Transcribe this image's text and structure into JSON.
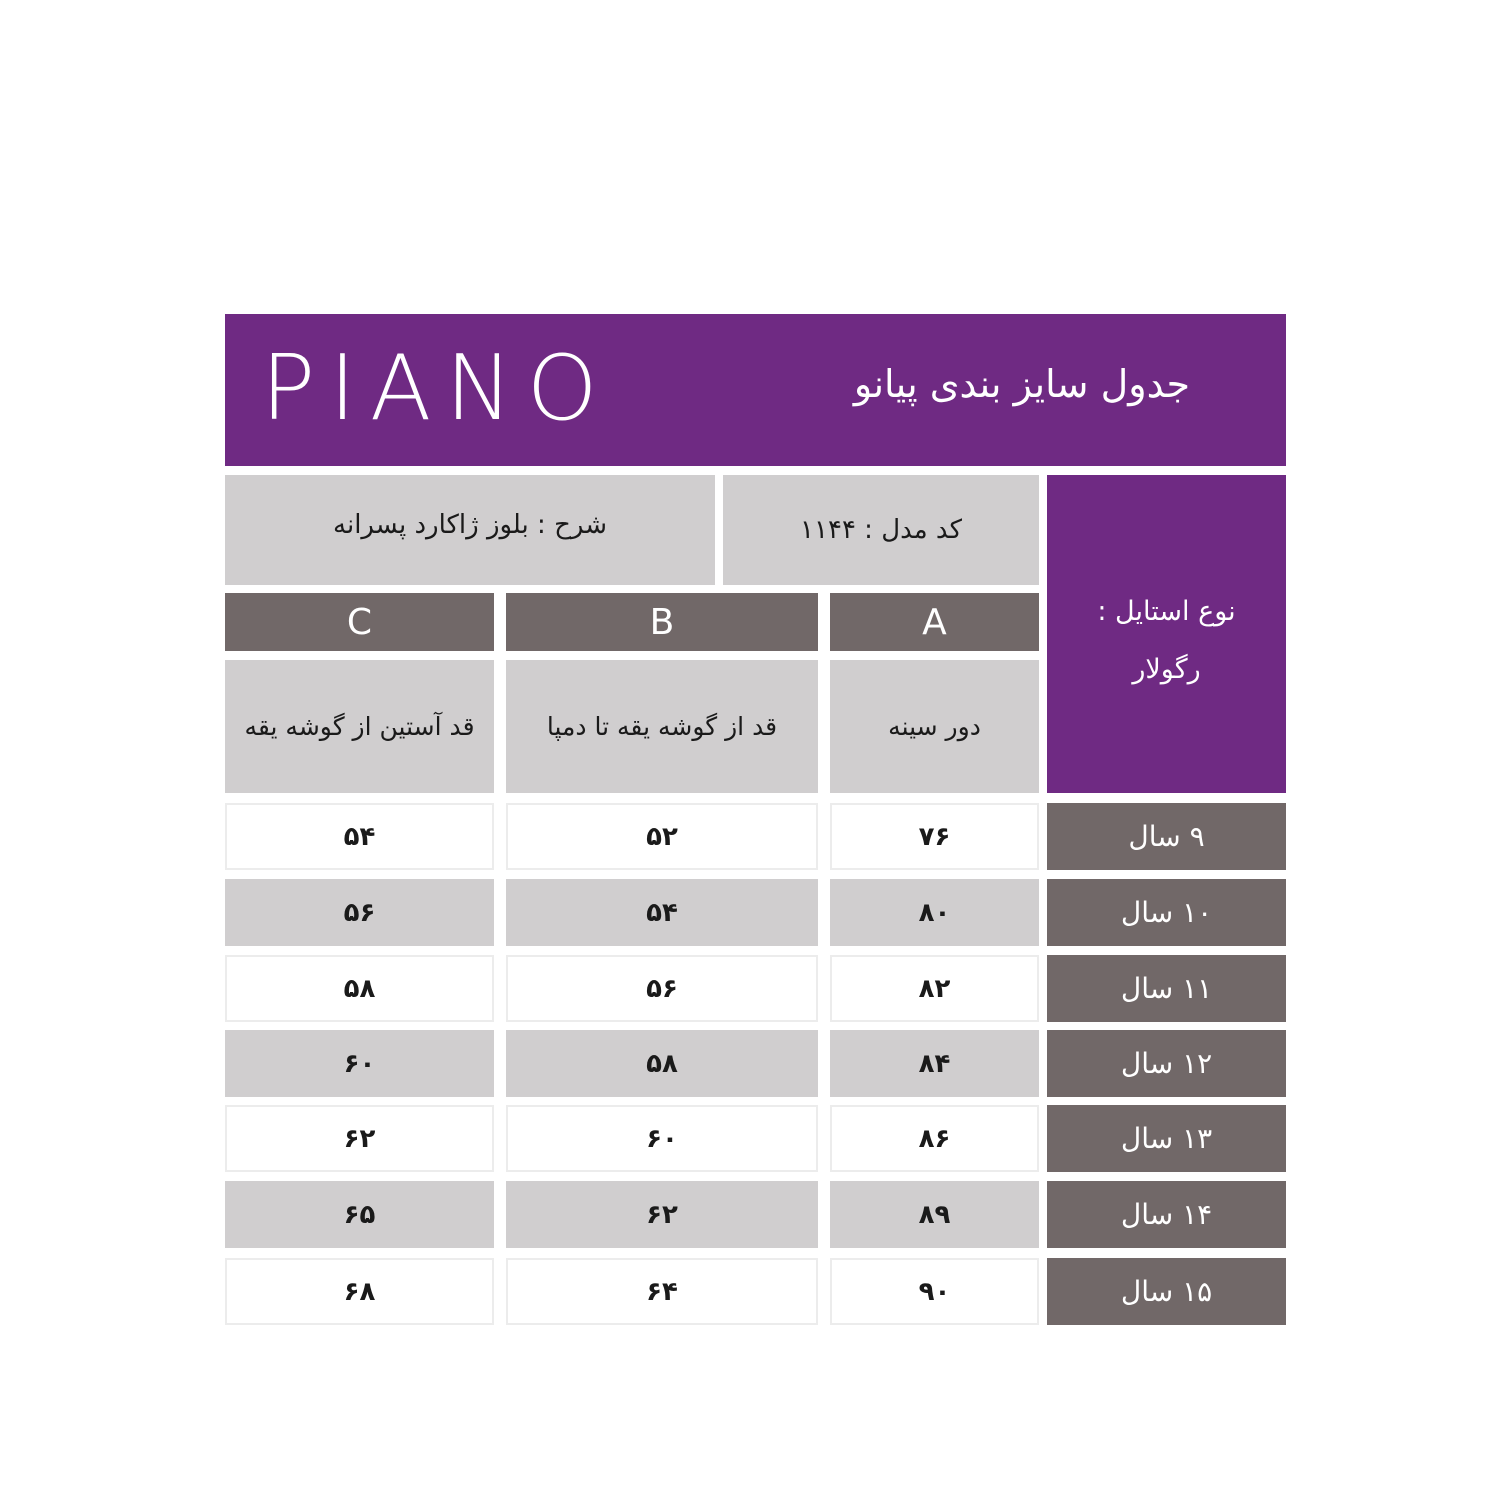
{
  "header": {
    "logo": "PIANO",
    "title": "جدول سایز بندی پیانو"
  },
  "info": {
    "description": "شرح : بلوز ژاکارد پسرانه",
    "model_code": "کد مدل : ۱۱۴۴",
    "style_label": "نوع استایل :",
    "style_value": "رگولار"
  },
  "columns": [
    {
      "letter": "A",
      "label": "دور سینه"
    },
    {
      "letter": "B",
      "label": "قد از گوشه یقه تا دمپا"
    },
    {
      "letter": "C",
      "label": "قد آستین از گوشه یقه"
    }
  ],
  "rows": [
    {
      "age": "۹ سال",
      "A": "۷۶",
      "B": "۵۲",
      "C": "۵۴"
    },
    {
      "age": "۱۰ سال",
      "A": "۸۰",
      "B": "۵۴",
      "C": "۵۶"
    },
    {
      "age": "۱۱ سال",
      "A": "۸۲",
      "B": "۵۶",
      "C": "۵۸"
    },
    {
      "age": "۱۲ سال",
      "A": "۸۴",
      "B": "۵۸",
      "C": "۶۰"
    },
    {
      "age": "۱۳ سال",
      "A": "۸۶",
      "B": "۶۰",
      "C": "۶۲"
    },
    {
      "age": "۱۴ سال",
      "A": "۸۹",
      "B": "۶۲",
      "C": "۶۵"
    },
    {
      "age": "۱۵ سال",
      "A": "۹۰",
      "B": "۶۴",
      "C": "۶۸"
    }
  ],
  "colors": {
    "purple": "#6f2a83",
    "dark_gray": "#716868",
    "light_gray": "#d0cecf"
  }
}
